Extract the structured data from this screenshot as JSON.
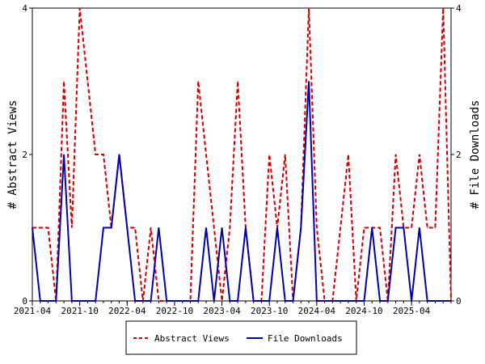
{
  "chart_data": {
    "type": "line",
    "x_tick_labels": [
      "2021-04",
      "2021-10",
      "2022-04",
      "2022-10",
      "2023-04",
      "2023-10",
      "2024-04",
      "2024-10",
      "2025-04"
    ],
    "x_tick_indices": [
      0,
      6,
      12,
      18,
      24,
      30,
      36,
      42,
      48
    ],
    "x_count": 54,
    "ylabel_left": "# Abstract Views",
    "ylabel_right": "# File Downloads",
    "ylim_left": [
      0,
      4
    ],
    "ylim_right": [
      0,
      4
    ],
    "y_ticks_left": [
      0,
      2,
      4
    ],
    "y_ticks_right": [
      0,
      2,
      4
    ],
    "legend_position": "bottom-center",
    "series": [
      {
        "name": "Abstract Views",
        "color": "#cc0000",
        "dash": "dashed",
        "axis": "left",
        "values": [
          1,
          1,
          1,
          0,
          3,
          1,
          4,
          3,
          2,
          2,
          1,
          2,
          1,
          1,
          0,
          1,
          0,
          0,
          0,
          0,
          0,
          3,
          2,
          1,
          0,
          1,
          3,
          1,
          0,
          0,
          2,
          1,
          2,
          0,
          1,
          4,
          1,
          0,
          0,
          1,
          2,
          0,
          1,
          1,
          1,
          0,
          2,
          1,
          1,
          2,
          1,
          1,
          4,
          0
        ]
      },
      {
        "name": "File Downloads",
        "color": "#0000aa",
        "dash": "solid",
        "axis": "right",
        "values": [
          1,
          0,
          0,
          0,
          2,
          0,
          0,
          0,
          0,
          1,
          1,
          2,
          1,
          0,
          0,
          0,
          1,
          0,
          0,
          0,
          0,
          0,
          1,
          0,
          1,
          0,
          0,
          1,
          0,
          0,
          0,
          1,
          0,
          0,
          1,
          3,
          0,
          0,
          0,
          0,
          0,
          0,
          0,
          1,
          0,
          0,
          1,
          1,
          0,
          1,
          0,
          0,
          0,
          0
        ]
      }
    ]
  }
}
